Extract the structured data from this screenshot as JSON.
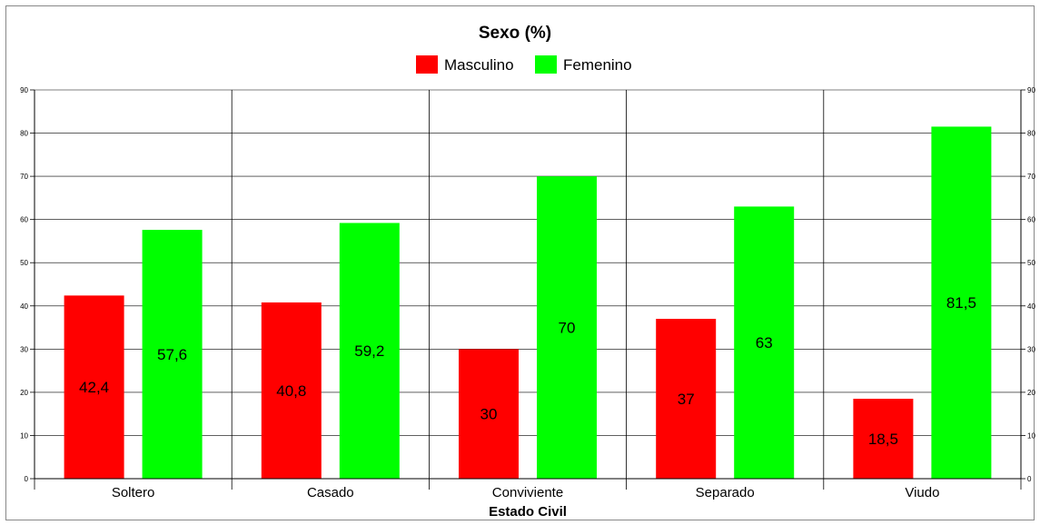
{
  "chart_data": {
    "type": "bar",
    "title": "Sexo (%)",
    "xlabel": "Estado Civil",
    "ylabel": "",
    "ylim": [
      0,
      90
    ],
    "yticks": [
      "0",
      "10",
      "20",
      "30",
      "40",
      "50",
      "60",
      "70",
      "80",
      "90"
    ],
    "categories": [
      "Soltero",
      "Casado",
      "Conviviente",
      "Separado",
      "Viudo"
    ],
    "series": [
      {
        "name": "Masculino",
        "color": "#ff0000",
        "values": [
          42.4,
          40.8,
          30,
          37,
          18.5
        ],
        "labels": [
          "42,4",
          "40,8",
          "30",
          "37",
          "18,5"
        ]
      },
      {
        "name": "Femenino",
        "color": "#00ff00",
        "values": [
          57.6,
          59.2,
          70,
          63,
          81.5
        ],
        "labels": [
          "57,6",
          "59,2",
          "70",
          "63",
          "81,5"
        ]
      }
    ],
    "legend": "top-center",
    "grid": true,
    "secondary_y_axis": true
  }
}
